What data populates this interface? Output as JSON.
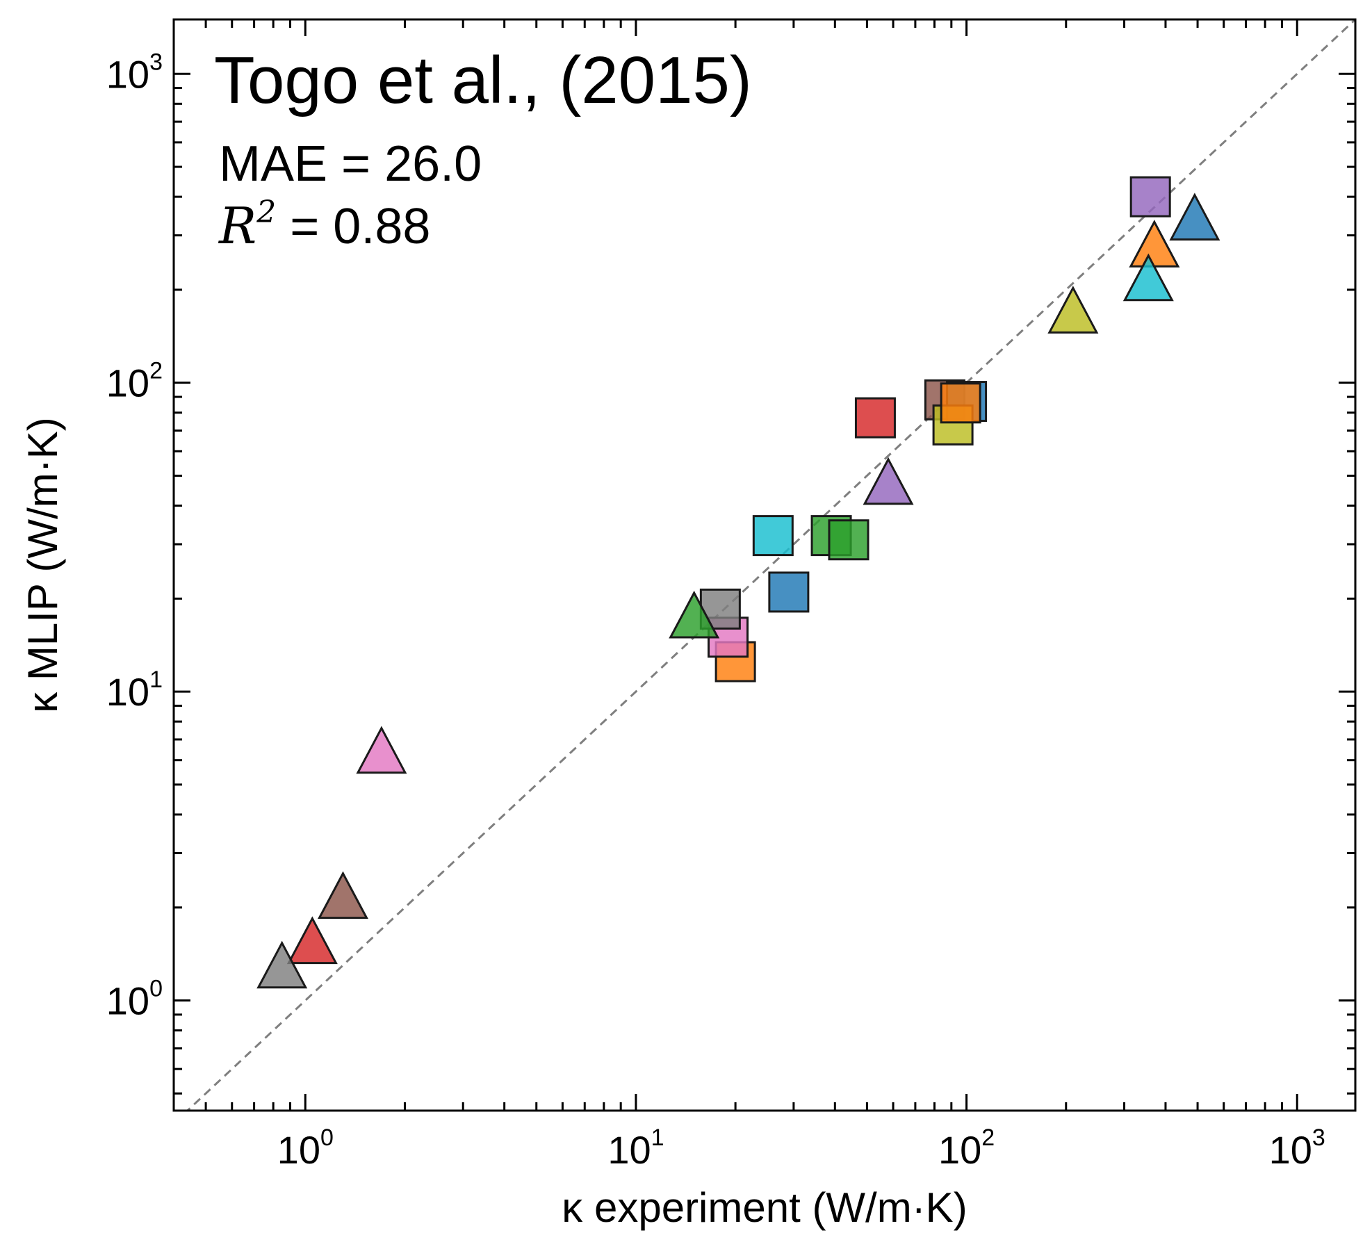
{
  "chart_data": {
    "type": "scatter",
    "title": "Togo et al., (2015)",
    "xlabel": "κ experiment (W/m·K)",
    "ylabel": "κ MLIP (W/m·K)",
    "xscale": "log",
    "yscale": "log",
    "xlim": [
      0.4,
      1500
    ],
    "ylim": [
      0.44,
      1500
    ],
    "x_tick_labels": [
      {
        "value": 1,
        "base": "10",
        "exp": "0"
      },
      {
        "value": 10,
        "base": "10",
        "exp": "1"
      },
      {
        "value": 100,
        "base": "10",
        "exp": "2"
      },
      {
        "value": 1000,
        "base": "10",
        "exp": "3"
      }
    ],
    "y_tick_labels": [
      {
        "value": 1,
        "base": "10",
        "exp": "0"
      },
      {
        "value": 10,
        "base": "10",
        "exp": "1"
      },
      {
        "value": 100,
        "base": "10",
        "exp": "2"
      },
      {
        "value": 1000,
        "base": "10",
        "exp": "3"
      }
    ],
    "annotations": {
      "mae_label": "MAE = 26.0",
      "r2_symbol": "R",
      "r2_exp": "2",
      "r2_value": " = 0.88"
    },
    "reference_line": {
      "style": "dashed",
      "color": "#7f7f7f",
      "from": [
        0.4,
        0.4
      ],
      "to": [
        1500,
        1500
      ]
    },
    "series": [
      {
        "name": "squares",
        "marker": "square",
        "points": [
          {
            "x": 360,
            "y": 400,
            "color": "#9467bd"
          },
          {
            "x": 53,
            "y": 77,
            "color": "#d62728"
          },
          {
            "x": 86,
            "y": 88,
            "color": "#8c564b"
          },
          {
            "x": 100,
            "y": 87,
            "color": "#1f77b4"
          },
          {
            "x": 91,
            "y": 73,
            "color": "#bcbd22"
          },
          {
            "x": 96,
            "y": 86,
            "color": "#ff7f0e"
          },
          {
            "x": 26,
            "y": 32,
            "color": "#17becf"
          },
          {
            "x": 39,
            "y": 32,
            "color": "#2ca02c"
          },
          {
            "x": 44,
            "y": 31,
            "color": "#2ca02c"
          },
          {
            "x": 29,
            "y": 21,
            "color": "#1f77b4"
          },
          {
            "x": 20,
            "y": 12.5,
            "color": "#ff7f0e"
          },
          {
            "x": 19,
            "y": 15,
            "color": "#e377c2"
          },
          {
            "x": 18,
            "y": 18.5,
            "color": "#7f7f7f"
          }
        ]
      },
      {
        "name": "triangles",
        "marker": "triangle",
        "points": [
          {
            "x": 490,
            "y": 330,
            "color": "#1f77b4"
          },
          {
            "x": 370,
            "y": 270,
            "color": "#ff7f0e"
          },
          {
            "x": 355,
            "y": 210,
            "color": "#17becf"
          },
          {
            "x": 210,
            "y": 165,
            "color": "#bcbd22"
          },
          {
            "x": 58,
            "y": 46,
            "color": "#9467bd"
          },
          {
            "x": 15,
            "y": 17,
            "color": "#2ca02c"
          },
          {
            "x": 1.7,
            "y": 6.2,
            "color": "#e377c2"
          },
          {
            "x": 1.3,
            "y": 2.1,
            "color": "#8c564b"
          },
          {
            "x": 1.05,
            "y": 1.5,
            "color": "#d62728"
          },
          {
            "x": 0.85,
            "y": 1.25,
            "color": "#7f7f7f"
          }
        ]
      }
    ]
  }
}
